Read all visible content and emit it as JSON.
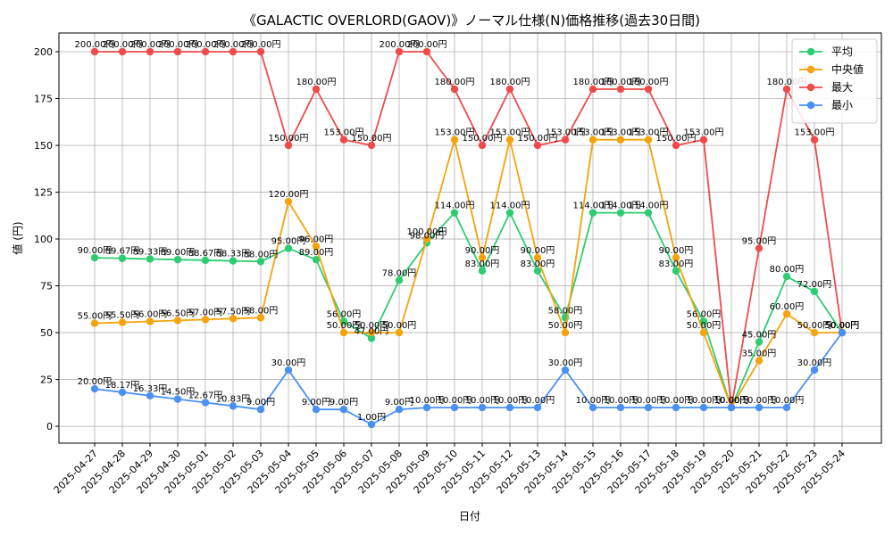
{
  "chart_data": {
    "type": "line",
    "title": "《GALACTIC OVERLORD(GAOV)》ノーマル仕様(N)価格推移(過去30日間)",
    "xlabel": "日付",
    "ylabel": "値 (円)",
    "ylim": [
      -9,
      210
    ],
    "yticks": [
      0,
      25,
      50,
      75,
      100,
      125,
      150,
      175,
      200
    ],
    "grid": true,
    "legend_position": "top-right",
    "label_suffix": "円",
    "categories": [
      "2025-04-27",
      "2025-04-28",
      "2025-04-29",
      "2025-04-30",
      "2025-05-01",
      "2025-05-02",
      "2025-05-03",
      "2025-05-04",
      "2025-05-05",
      "2025-05-06",
      "2025-05-07",
      "2025-05-08",
      "2025-05-09",
      "2025-05-10",
      "2025-05-11",
      "2025-05-12",
      "2025-05-13",
      "2025-05-14",
      "2025-05-15",
      "2025-05-16",
      "2025-05-17",
      "2025-05-18",
      "2025-05-19",
      "2025-05-20",
      "2025-05-21",
      "2025-05-22",
      "2025-05-23",
      "2025-05-24"
    ],
    "series": [
      {
        "name": "平均",
        "color": "#2ecc71",
        "values": [
          90,
          89.67,
          89.33,
          89,
          88.67,
          88.33,
          88,
          95,
          89,
          56,
          47,
          78,
          98,
          114,
          83,
          114,
          83,
          58,
          114,
          114,
          114,
          83,
          56,
          10,
          45,
          80,
          72,
          50
        ]
      },
      {
        "name": "中央値",
        "color": "#f5a30a",
        "values": [
          55,
          55.5,
          56,
          56.5,
          57,
          57.5,
          58,
          120,
          96,
          50,
          50,
          50,
          100,
          153,
          90,
          153,
          90,
          50,
          153,
          153,
          153,
          90,
          50,
          10,
          35,
          60,
          50,
          50
        ]
      },
      {
        "name": "最大",
        "color": "#ef4b4b",
        "values": [
          200,
          200,
          200,
          200,
          200,
          200,
          200,
          150,
          180,
          153,
          150,
          200,
          200,
          180,
          150,
          180,
          150,
          153,
          180,
          180,
          180,
          150,
          153,
          10,
          95,
          180,
          153,
          50
        ]
      },
      {
        "name": "最小",
        "color": "#4a90f2",
        "values": [
          20,
          18.17,
          16.33,
          14.5,
          12.67,
          10.83,
          9,
          30,
          9,
          9,
          1,
          9,
          10,
          10,
          10,
          10,
          10,
          30,
          10,
          10,
          10,
          10,
          10,
          10,
          10,
          10,
          30,
          50
        ]
      }
    ]
  }
}
